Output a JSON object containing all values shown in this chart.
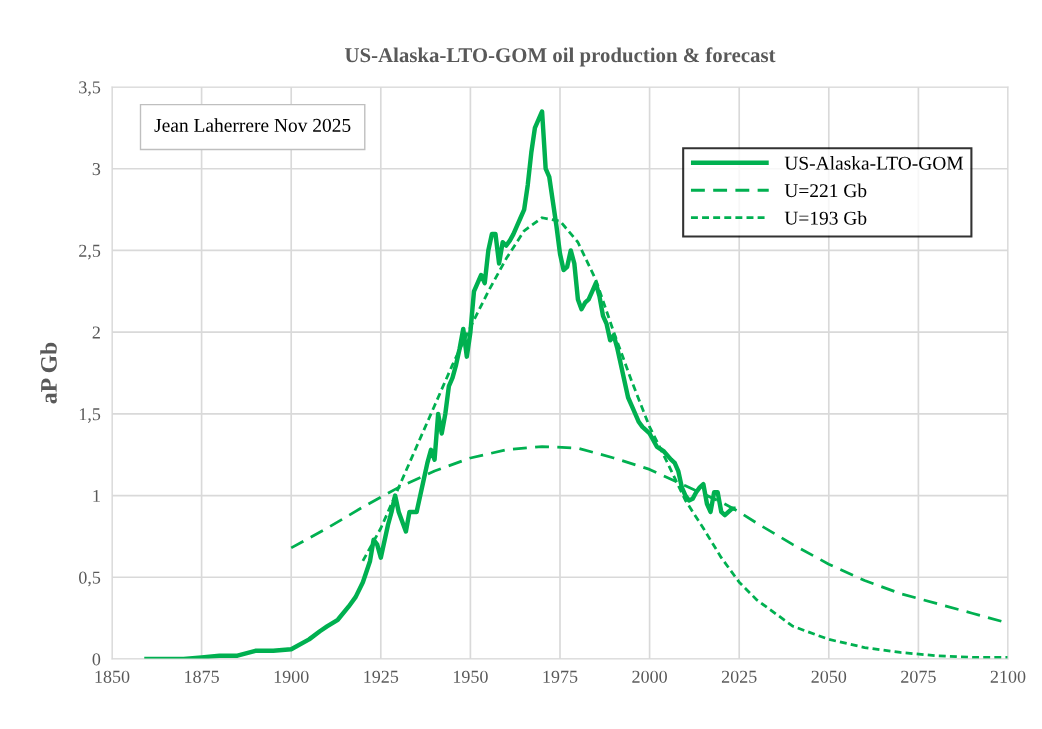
{
  "chart_data": {
    "type": "line",
    "title": "US-Alaska-LTO-GOM oil production & forecast",
    "ylabel": "aP Gb",
    "annotations": [
      "Jean Laherrere Nov 2025"
    ],
    "xlim": [
      1850,
      2100
    ],
    "xticks": [
      1850,
      1875,
      1900,
      1925,
      1950,
      1975,
      2000,
      2025,
      2050,
      2075,
      2100
    ],
    "ylim": [
      0,
      3.5
    ],
    "yticks": [
      {
        "value": 0,
        "label": "0"
      },
      {
        "value": 0.5,
        "label": "0,5"
      },
      {
        "value": 1,
        "label": "1"
      },
      {
        "value": 1.5,
        "label": "1,5"
      },
      {
        "value": 2,
        "label": "2"
      },
      {
        "value": 2.5,
        "label": "2,5"
      },
      {
        "value": 3,
        "label": "3"
      },
      {
        "value": 3.5,
        "label": "3,5"
      }
    ],
    "grid": true,
    "legend": "top right",
    "marker": "none",
    "series": [
      {
        "name": "US-Alaska-LTO-GOM",
        "color": "#00b050",
        "line_style": "solid",
        "x": [
          1859,
          1870,
          1875,
          1880,
          1885,
          1890,
          1895,
          1900,
          1905,
          1908,
          1910,
          1913,
          1916,
          1918,
          1920,
          1922,
          1923,
          1924,
          1925,
          1927,
          1928,
          1929,
          1930,
          1932,
          1933,
          1935,
          1937,
          1938,
          1939,
          1940,
          1941,
          1942,
          1943,
          1944,
          1945,
          1946,
          1947,
          1948,
          1949,
          1950,
          1951,
          1952,
          1953,
          1954,
          1955,
          1956,
          1957,
          1958,
          1959,
          1960,
          1961,
          1962,
          1963,
          1964,
          1965,
          1966,
          1967,
          1968,
          1969,
          1970,
          1971,
          1972,
          1973,
          1974,
          1975,
          1976,
          1977,
          1978,
          1979,
          1980,
          1981,
          1982,
          1983,
          1984,
          1985,
          1986,
          1987,
          1988,
          1989,
          1990,
          1991,
          1992,
          1993,
          1994,
          1995,
          1996,
          1997,
          1998,
          1999,
          2000,
          2002,
          2004,
          2006,
          2007,
          2008,
          2009,
          2010,
          2011,
          2012,
          2013,
          2014,
          2015,
          2016,
          2017,
          2018,
          2019,
          2020,
          2021,
          2022,
          2023,
          2024
        ],
        "values": [
          0,
          0,
          0.01,
          0.02,
          0.02,
          0.05,
          0.05,
          0.06,
          0.12,
          0.17,
          0.2,
          0.24,
          0.32,
          0.38,
          0.47,
          0.6,
          0.73,
          0.7,
          0.62,
          0.82,
          0.9,
          1.0,
          0.9,
          0.78,
          0.9,
          0.9,
          1.1,
          1.2,
          1.28,
          1.22,
          1.5,
          1.38,
          1.5,
          1.67,
          1.72,
          1.8,
          1.9,
          2.02,
          1.85,
          2.0,
          2.25,
          2.3,
          2.35,
          2.3,
          2.5,
          2.6,
          2.6,
          2.42,
          2.55,
          2.53,
          2.56,
          2.6,
          2.65,
          2.7,
          2.75,
          2.9,
          3.1,
          3.25,
          3.3,
          3.35,
          3.0,
          2.95,
          2.8,
          2.65,
          2.48,
          2.38,
          2.4,
          2.5,
          2.42,
          2.2,
          2.14,
          2.18,
          2.2,
          2.25,
          2.3,
          2.22,
          2.1,
          2.05,
          1.95,
          1.98,
          1.9,
          1.8,
          1.7,
          1.6,
          1.55,
          1.5,
          1.45,
          1.42,
          1.4,
          1.38,
          1.3,
          1.27,
          1.22,
          1.2,
          1.15,
          1.05,
          1.0,
          0.97,
          0.98,
          1.02,
          1.05,
          1.07,
          0.95,
          0.9,
          1.02,
          1.02,
          0.9,
          0.88,
          0.9,
          0.92,
          0.92
        ]
      },
      {
        "name": "U=221 Gb",
        "color": "#00b050",
        "line_style": "dashed",
        "x": [
          1900,
          1910,
          1920,
          1930,
          1940,
          1950,
          1960,
          1970,
          1980,
          1990,
          2000,
          2010,
          2020,
          2025,
          2030,
          2040,
          2050,
          2060,
          2070,
          2080,
          2090,
          2100
        ],
        "values": [
          0.68,
          0.8,
          0.93,
          1.05,
          1.15,
          1.23,
          1.28,
          1.3,
          1.29,
          1.23,
          1.16,
          1.06,
          0.96,
          0.9,
          0.83,
          0.7,
          0.58,
          0.48,
          0.4,
          0.34,
          0.28,
          0.22
        ]
      },
      {
        "name": "U=193 Gb",
        "color": "#00b050",
        "line_style": "dotted",
        "x": [
          1920,
          1925,
          1930,
          1935,
          1940,
          1945,
          1950,
          1955,
          1960,
          1965,
          1970,
          1975,
          1980,
          1985,
          1990,
          1995,
          2000,
          2005,
          2010,
          2015,
          2020,
          2025,
          2030,
          2040,
          2050,
          2060,
          2070,
          2080,
          2090,
          2100
        ],
        "values": [
          0.6,
          0.8,
          1.05,
          1.3,
          1.55,
          1.8,
          2.03,
          2.25,
          2.45,
          2.62,
          2.7,
          2.68,
          2.55,
          2.32,
          2.0,
          1.7,
          1.42,
          1.2,
          0.97,
          0.8,
          0.62,
          0.47,
          0.36,
          0.2,
          0.12,
          0.07,
          0.04,
          0.02,
          0.01,
          0.01
        ]
      }
    ]
  }
}
